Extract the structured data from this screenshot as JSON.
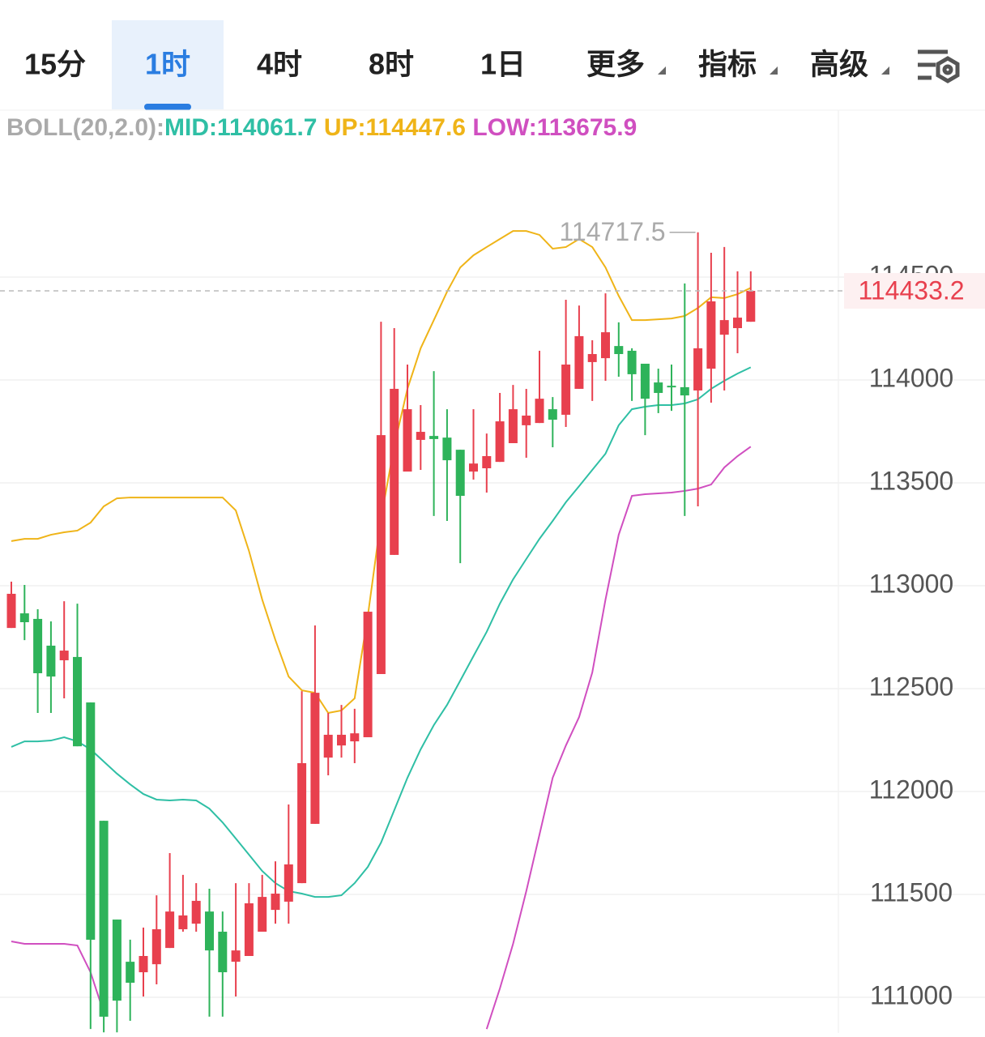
{
  "tabs": [
    "15分",
    "1时",
    "4时",
    "8时",
    "1日",
    "更多",
    "指标",
    "高级"
  ],
  "chart_data": {
    "type": "candlestick",
    "indicator": "BOLL(20,2.0):",
    "up_color": "#e8404e",
    "down_color": "#2eb35a",
    "open": [
      112795,
      112866,
      112839,
      112709,
      112638,
      112654,
      112433,
      111858,
      111378,
      111173,
      111122,
      111161,
      111240,
      111331,
      111358,
      111417,
      111319,
      111173,
      111201,
      111319,
      111425,
      111465,
      111555,
      111843,
      112165,
      112224,
      112244,
      112264,
      112571,
      113150,
      113555,
      113709,
      113728,
      113720,
      113661,
      113555,
      113571,
      113602,
      113693,
      113780,
      113791,
      113858,
      113831,
      113957,
      114087,
      114106,
      114165,
      114142,
      114079,
      113988,
      113972,
      113965,
      113949,
      114055,
      114220,
      114252,
      114283
    ],
    "high": [
      113020,
      113004,
      112886,
      112827,
      112925,
      112913,
      112433,
      111858,
      111378,
      111280,
      111339,
      111496,
      111701,
      111595,
      111555,
      111528,
      111417,
      111555,
      111555,
      111595,
      111661,
      111937,
      112488,
      112807,
      112382,
      112421,
      112402,
      112874,
      114283,
      114252,
      114075,
      113878,
      114043,
      113858,
      113661,
      113858,
      113740,
      113937,
      113976,
      113957,
      114142,
      113917,
      114390,
      114362,
      114193,
      114421,
      114280,
      114154,
      114079,
      114055,
      114075,
      114469,
      114717.5,
      114618,
      114646,
      114528,
      114528
    ],
    "low": [
      112795,
      112736,
      112382,
      112382,
      112453,
      112220,
      110846,
      110830,
      110830,
      110886,
      111004,
      111063,
      111240,
      111319,
      111319,
      110906,
      110906,
      111004,
      111201,
      111319,
      111358,
      111358,
      111555,
      111843,
      112079,
      112165,
      112138,
      112264,
      112571,
      113150,
      113555,
      113563,
      113339,
      113315,
      113110,
      113516,
      113453,
      113602,
      113693,
      113622,
      113791,
      113673,
      113772,
      113957,
      113898,
      113996,
      114016,
      113898,
      113732,
      113839,
      113850,
      113339,
      113386,
      113890,
      113949,
      114130,
      114283
    ],
    "close": [
      112961,
      112823,
      112575,
      112559,
      112685,
      112220,
      111280,
      110906,
      110984,
      111071,
      111201,
      111331,
      111417,
      111398,
      111469,
      111228,
      111122,
      111228,
      111457,
      111488,
      111504,
      111646,
      112138,
      112480,
      112276,
      112276,
      112283,
      112874,
      113732,
      113957,
      113858,
      113748,
      113713,
      113610,
      113437,
      113594,
      113630,
      113799,
      113858,
      113827,
      113909,
      113807,
      114075,
      114213,
      114126,
      114232,
      114126,
      114028,
      113909,
      113937,
      113965,
      113925,
      114154,
      114382,
      114291,
      114303,
      114433.2
    ],
    "series": [
      {
        "name": "MID:",
        "color": "#2fbfa5",
        "values": [
          112217,
          112244,
          112244,
          112248,
          112264,
          112244,
          112205,
          112146,
          112087,
          112035,
          111988,
          111961,
          111957,
          111961,
          111957,
          111917,
          111850,
          111772,
          111693,
          111614,
          111555,
          111516,
          111504,
          111488,
          111488,
          111496,
          111555,
          111634,
          111752,
          111909,
          112067,
          112205,
          112323,
          112421,
          112539,
          112658,
          112776,
          112913,
          113031,
          113130,
          113228,
          113315,
          113406,
          113484,
          113563,
          113642,
          113780,
          113858,
          113870,
          113878,
          113878,
          113886,
          113906,
          113957,
          113996,
          114031,
          114061.7
        ]
      },
      {
        "name": "UP:",
        "color": "#efb418",
        "values": [
          113217,
          113228,
          113228,
          113248,
          113260,
          113268,
          113307,
          113386,
          113425,
          113429,
          113429,
          113429,
          113429,
          113429,
          113429,
          113429,
          113429,
          113366,
          113169,
          112933,
          112736,
          112559,
          112492,
          112480,
          112382,
          112394,
          112453,
          112854,
          113327,
          113681,
          113957,
          114154,
          114291,
          114429,
          114547,
          114606,
          114646,
          114685,
          114724,
          114724,
          114705,
          114638,
          114646,
          114685,
          114646,
          114547,
          114409,
          114291,
          114291,
          114295,
          114299,
          114311,
          114350,
          114402,
          114398,
          114417,
          114447.6
        ]
      },
      {
        "name": "LOW:",
        "color": "#d04fc0",
        "values": [
          111272,
          111260,
          111260,
          111260,
          111260,
          111252,
          111122,
          110925,
          null,
          null,
          null,
          null,
          null,
          null,
          null,
          null,
          null,
          null,
          null,
          null,
          null,
          null,
          null,
          null,
          null,
          null,
          null,
          null,
          null,
          null,
          null,
          null,
          null,
          null,
          null,
          null,
          110846,
          111043,
          111260,
          111516,
          111791,
          112067,
          112224,
          112362,
          112579,
          112933,
          113248,
          113437,
          113445,
          113449,
          113453,
          113461,
          113472,
          113492,
          113575,
          113630,
          113675.9
        ]
      }
    ],
    "ylim": [
      110827,
      115315
    ],
    "yticks": [
      111000,
      111500,
      112000,
      112500,
      113000,
      113500,
      114000,
      114500
    ],
    "grid": true
  }
}
